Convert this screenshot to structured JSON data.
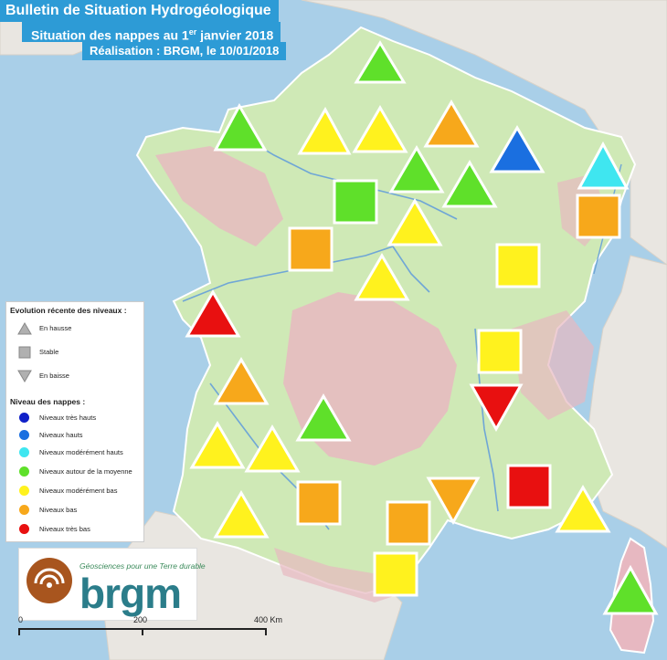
{
  "title": {
    "line1": "Bulletin de Situation Hydrogéologique",
    "line2_pre": "Situation des nappes au 1",
    "line2_sup": "er",
    "line2_post": " janvier 2018",
    "line3": "Réalisation : BRGM, le 10/01/2018"
  },
  "legend": {
    "trend_title": "Evolution récente des niveaux :",
    "trend_items": [
      {
        "label": "En hausse",
        "icon": "triangle-up-icon"
      },
      {
        "label": "Stable",
        "icon": "square-icon"
      },
      {
        "label": "En baisse",
        "icon": "triangle-down-icon"
      }
    ],
    "level_title": "Niveau des nappes :",
    "level_items": [
      {
        "label": "Niveaux très hauts",
        "color": "#1020c8"
      },
      {
        "label": "Niveaux hauts",
        "color": "#1a6fe0"
      },
      {
        "label": "Niveaux modérément hauts",
        "color": "#3fe6f0"
      },
      {
        "label": "Niveaux autour de la moyenne",
        "color": "#5fe02a"
      },
      {
        "label": "Niveaux modérément bas",
        "color": "#fff21e"
      },
      {
        "label": "Niveaux bas",
        "color": "#f7a81b"
      },
      {
        "label": "Niveaux très bas",
        "color": "#e81010"
      }
    ]
  },
  "logo": {
    "tagline": "Géosciences pour une Terre durable",
    "wordmark": "brgm"
  },
  "scale": {
    "labels": [
      "0",
      "200",
      "400 Km"
    ]
  }
}
